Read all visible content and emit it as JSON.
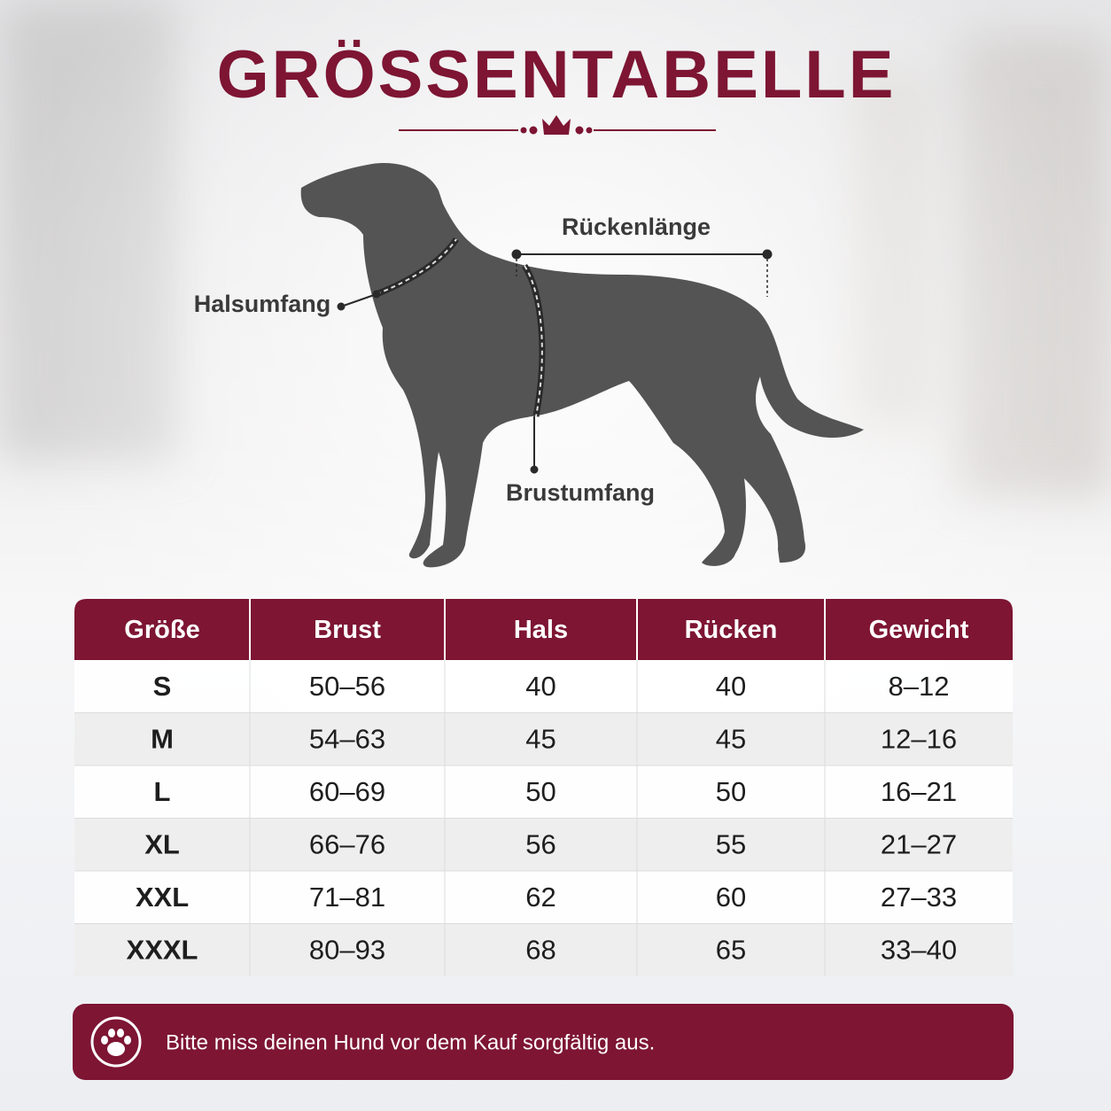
{
  "header": {
    "title": "GRÖSSENTABELLE"
  },
  "diagram": {
    "labels": {
      "neck": "Halsumfang",
      "back": "Rückenlänge",
      "chest": "Brustumfang"
    }
  },
  "table": {
    "columns": [
      "Größe",
      "Brust",
      "Hals",
      "Rücken",
      "Gewicht"
    ],
    "rows": [
      [
        "S",
        "50–56",
        40,
        40,
        "8–12"
      ],
      [
        "M",
        "54–63",
        45,
        45,
        "12–16"
      ],
      [
        "L",
        "60–69",
        50,
        50,
        "16–21"
      ],
      [
        "XL",
        "66–76",
        56,
        55,
        "21–27"
      ],
      [
        "XXL",
        "71–81",
        62,
        60,
        "27–33"
      ],
      [
        "XXXL",
        "80–93",
        68,
        65,
        "33–40"
      ]
    ]
  },
  "footer": {
    "note": "Bitte miss deinen Hund vor dem Kauf sorgfältig aus."
  }
}
